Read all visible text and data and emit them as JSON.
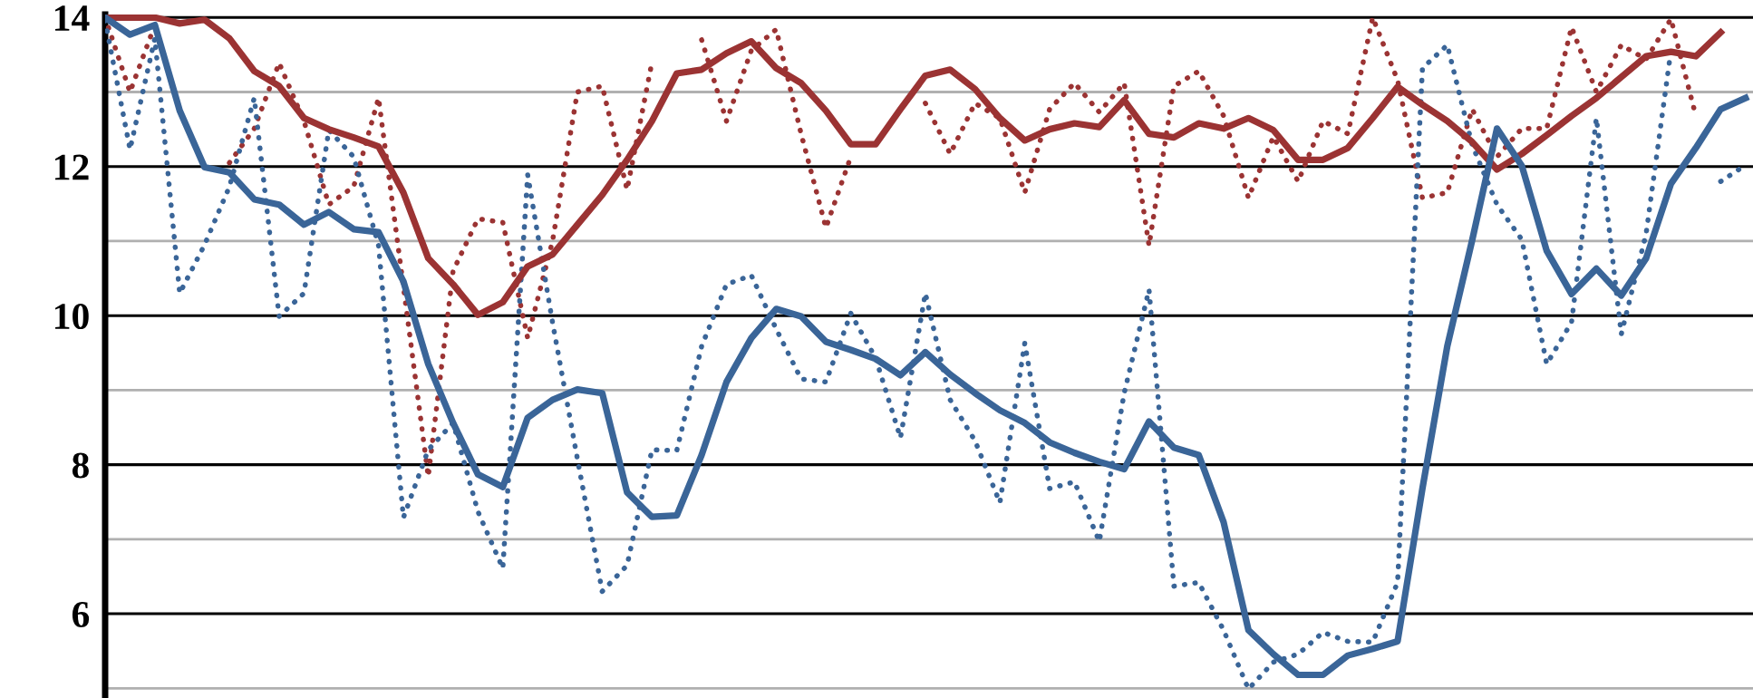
{
  "chart_data": {
    "type": "line",
    "categories": [
      null,
      null,
      null,
      null,
      null,
      null,
      null,
      null,
      null,
      null,
      null,
      null,
      null,
      null,
      null,
      null,
      null,
      null,
      null,
      null,
      null,
      null,
      null,
      null,
      null,
      null,
      null,
      null,
      null,
      null,
      null,
      null,
      null,
      null,
      null,
      null,
      null,
      null,
      null,
      null,
      null,
      null,
      null,
      null,
      null,
      null,
      null,
      null,
      null,
      null,
      null,
      null,
      null,
      null,
      null,
      null,
      null,
      null,
      null,
      null,
      null,
      null,
      null,
      null,
      null,
      null,
      null
    ],
    "ylim": [
      4.87,
      14.04
    ],
    "yticks": [
      {
        "value": 5,
        "label": null
      },
      6,
      {
        "value": 7,
        "label": null
      },
      8,
      {
        "value": 9,
        "label": null
      },
      10,
      {
        "value": 11,
        "label": null
      },
      12,
      {
        "value": 13,
        "label": null
      },
      14
    ],
    "grid": "y",
    "tick_labels": "y",
    "series": [
      {
        "color": "#9b3333",
        "line_style": "dotted",
        "values": [
          14.0,
          13.0,
          13.9,
          null,
          null,
          12.05,
          12.51,
          13.39,
          12.61,
          11.49,
          11.73,
          12.92,
          10.39,
          7.84,
          10.6,
          11.3,
          11.25,
          9.7,
          11.0,
          13.0,
          13.08,
          11.69,
          13.4,
          null,
          13.7,
          12.61,
          13.56,
          13.84,
          12.44,
          11.18,
          12.13,
          null,
          null,
          12.85,
          12.17,
          12.85,
          12.65,
          11.65,
          12.77,
          13.12,
          12.73,
          13.12,
          10.94,
          13.08,
          13.28,
          12.68,
          11.58,
          12.4,
          11.8,
          12.61,
          12.44,
          14.0,
          13.16,
          11.58,
          11.65,
          12.77,
          12.13,
          12.51,
          12.51,
          13.87,
          13.0,
          13.63,
          13.44,
          13.98,
          12.68,
          null,
          null
        ]
      },
      {
        "color": "#3a6598",
        "line_style": "dotted",
        "values": [
          13.96,
          12.23,
          13.72,
          10.3,
          10.95,
          11.73,
          12.92,
          9.99,
          10.3,
          12.49,
          12.13,
          10.94,
          7.29,
          8.2,
          8.56,
          7.37,
          6.61,
          11.89,
          9.91,
          8.08,
          6.3,
          6.65,
          8.2,
          8.19,
          9.59,
          10.42,
          10.54,
          9.82,
          9.15,
          9.11,
          10.03,
          9.43,
          8.36,
          10.3,
          8.87,
          8.32,
          7.49,
          9.63,
          7.68,
          7.77,
          6.97,
          8.96,
          10.35,
          6.37,
          6.42,
          5.78,
          4.99,
          5.35,
          5.46,
          5.75,
          5.63,
          5.62,
          6.42,
          13.32,
          13.63,
          12.29,
          11.49,
          11.02,
          9.35,
          9.91,
          12.65,
          9.75,
          11.1,
          13.56,
          null,
          11.8,
          12.02
        ]
      },
      {
        "color": "#9b3333",
        "line_style": "solid",
        "values": [
          14.0,
          14.0,
          14.0,
          13.92,
          13.97,
          13.72,
          13.28,
          13.08,
          12.65,
          12.5,
          12.39,
          12.27,
          11.65,
          10.77,
          10.42,
          10.01,
          10.18,
          10.66,
          10.82,
          11.22,
          11.62,
          12.09,
          12.61,
          13.25,
          13.3,
          13.52,
          13.68,
          13.32,
          13.12,
          12.75,
          12.3,
          12.3,
          12.77,
          13.22,
          13.3,
          13.04,
          12.65,
          12.35,
          12.5,
          12.58,
          12.53,
          12.89,
          12.44,
          12.39,
          12.58,
          12.51,
          12.65,
          12.49,
          12.09,
          12.09,
          12.25,
          12.65,
          13.07,
          12.83,
          12.61,
          12.33,
          11.96,
          12.17,
          12.42,
          12.68,
          12.92,
          13.2,
          13.48,
          13.54,
          13.48,
          13.8,
          null
        ]
      },
      {
        "color": "#3a6598",
        "line_style": "solid",
        "values": [
          14.0,
          13.77,
          13.9,
          12.75,
          11.99,
          11.92,
          11.56,
          11.49,
          11.22,
          11.39,
          11.16,
          11.12,
          10.46,
          9.35,
          8.56,
          7.87,
          7.7,
          8.63,
          8.87,
          9.01,
          8.96,
          7.63,
          7.3,
          7.32,
          8.13,
          9.11,
          9.7,
          10.09,
          9.99,
          9.65,
          9.54,
          9.42,
          9.2,
          9.51,
          9.21,
          8.96,
          8.73,
          8.56,
          8.3,
          8.16,
          8.04,
          7.94,
          8.58,
          8.23,
          8.13,
          7.23,
          5.78,
          5.46,
          5.18,
          5.18,
          5.44,
          5.53,
          5.63,
          7.68,
          9.59,
          11.01,
          12.51,
          12.01,
          10.87,
          10.29,
          10.63,
          10.27,
          10.77,
          11.77,
          12.25,
          12.77,
          12.92
        ]
      }
    ]
  }
}
